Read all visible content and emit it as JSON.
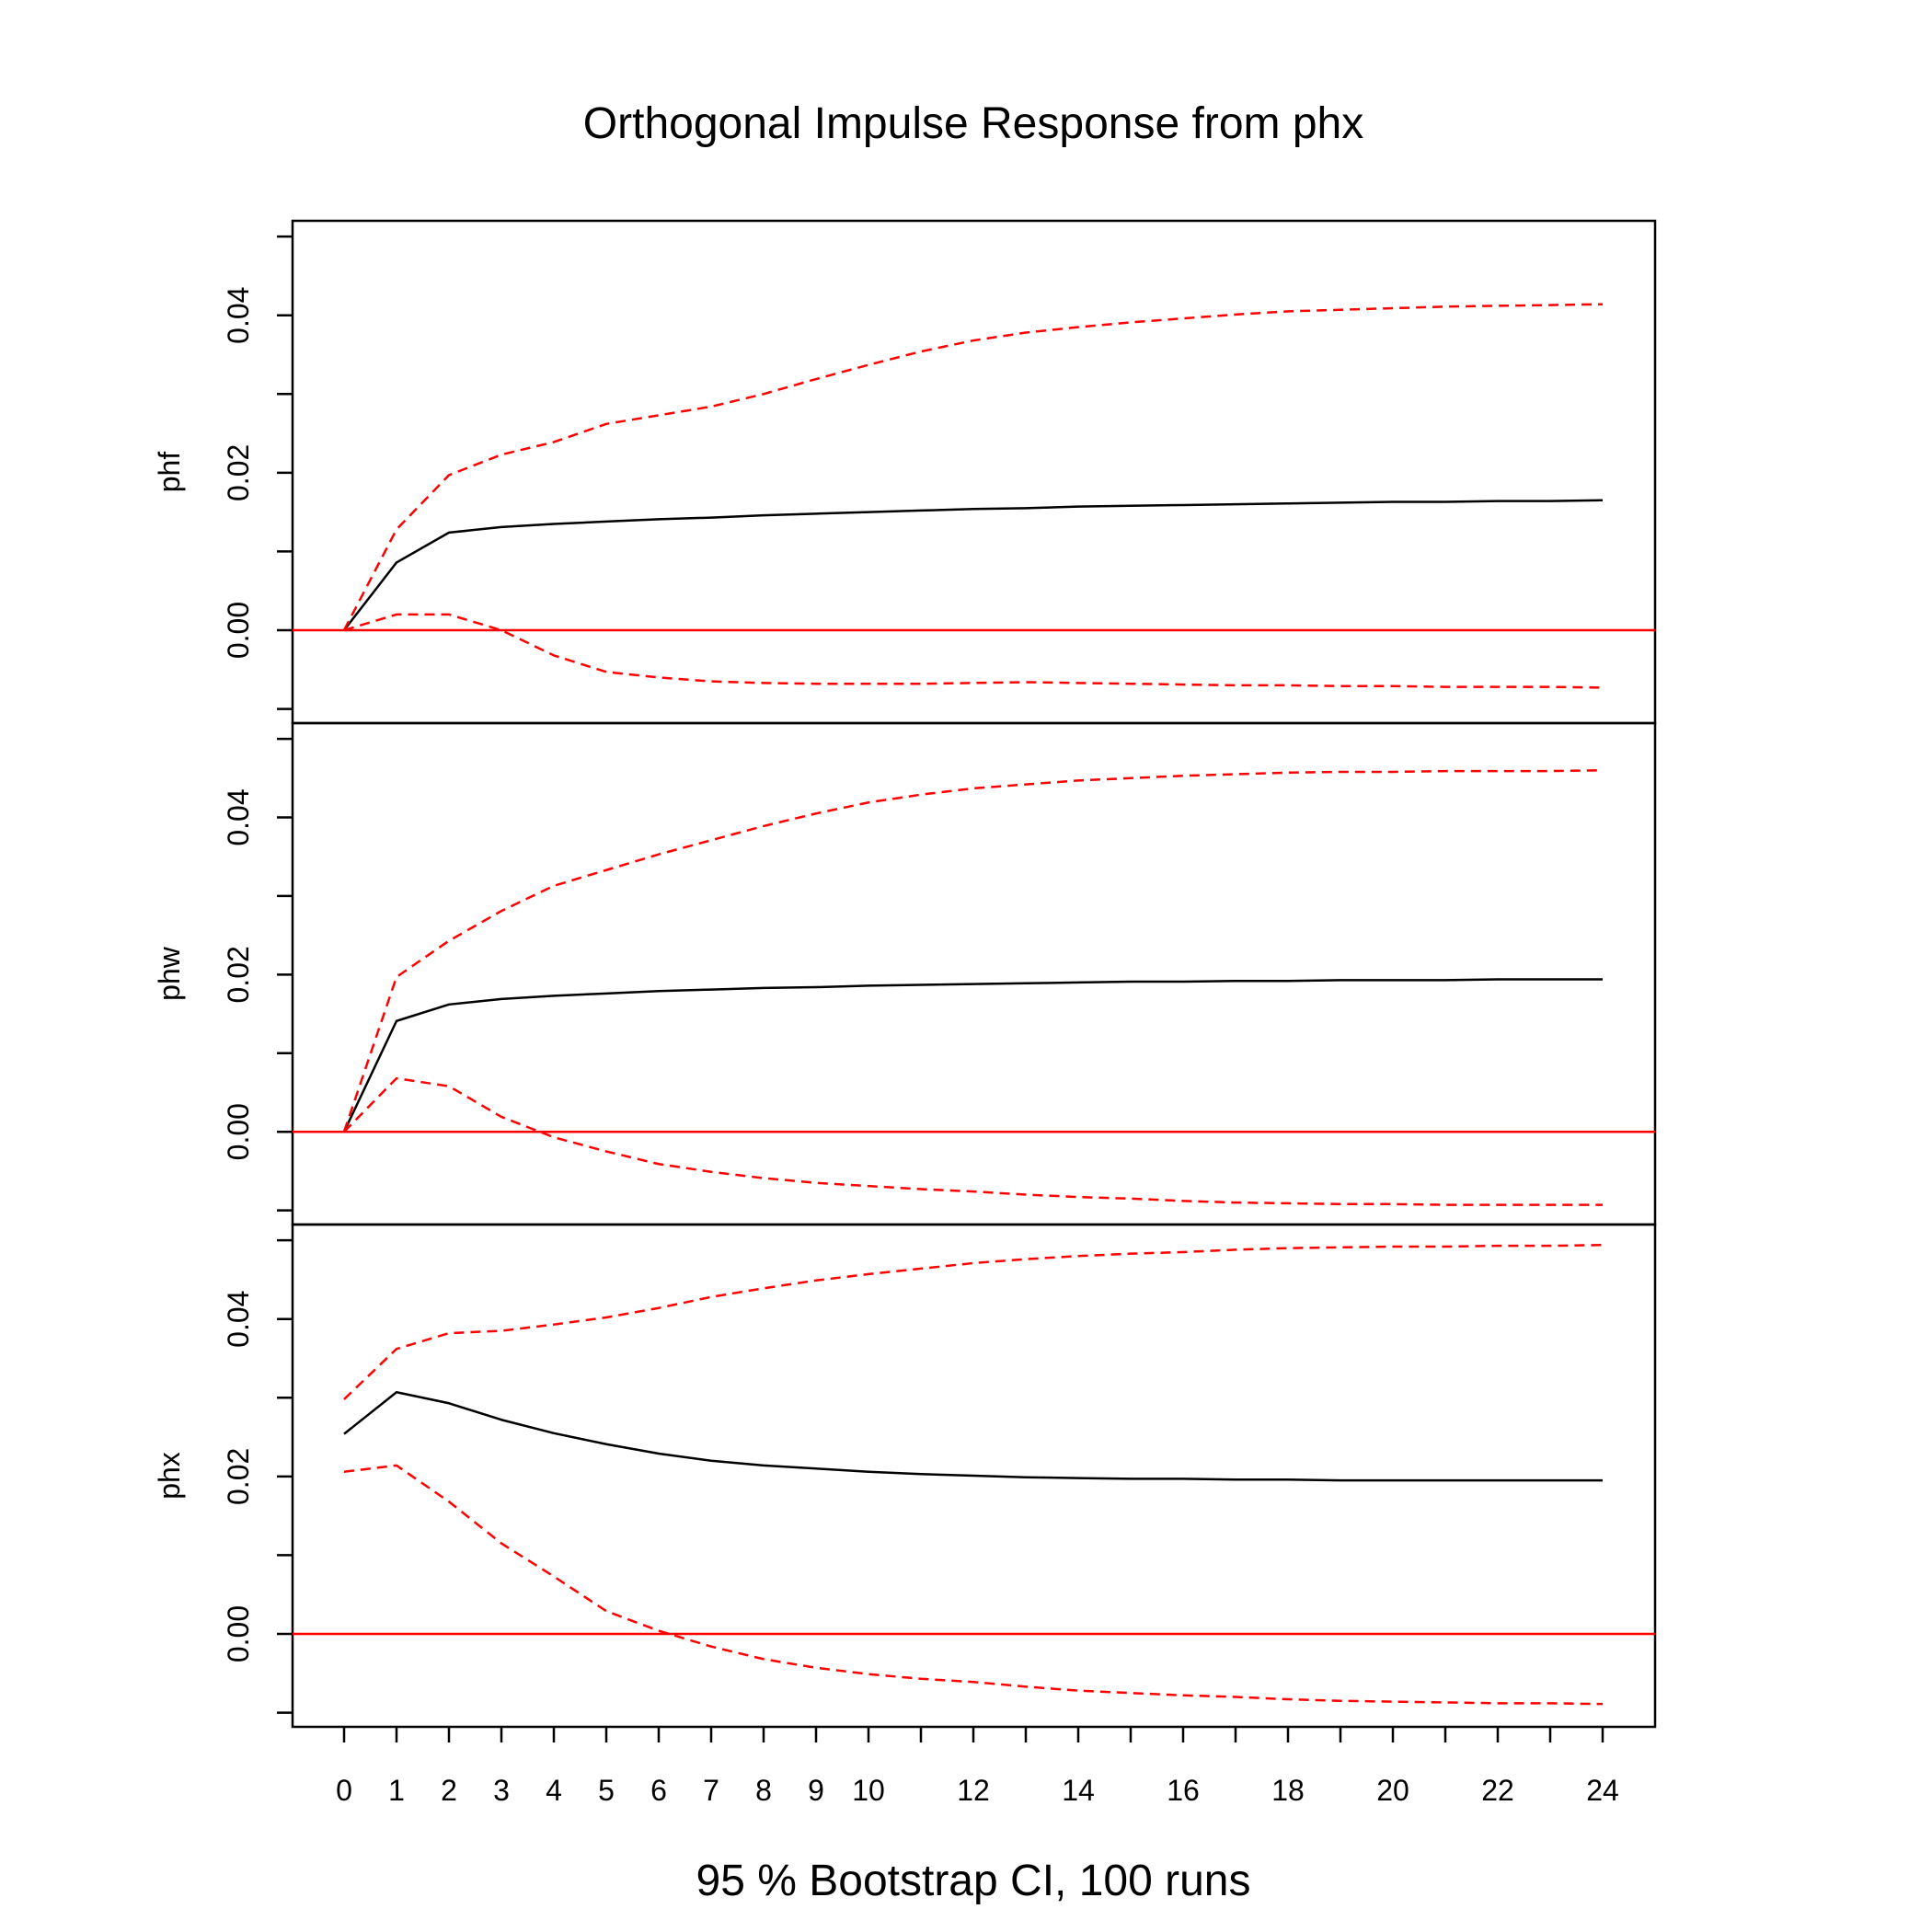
{
  "chart_data": {
    "type": "line",
    "title": "Orthogonal Impulse Response from phx",
    "xlabel": "95 % Bootstrap CI,  100 runs",
    "x": [
      0,
      1,
      2,
      3,
      4,
      5,
      6,
      7,
      8,
      9,
      10,
      11,
      12,
      13,
      14,
      15,
      16,
      17,
      18,
      19,
      20,
      21,
      22,
      23,
      24
    ],
    "x_tick_labels": [
      "0",
      "1",
      "2",
      "3",
      "4",
      "5",
      "6",
      "7",
      "8",
      "9",
      "10",
      "12",
      "14",
      "16",
      "18",
      "20",
      "22",
      "24"
    ],
    "x_tick_values": [
      0,
      1,
      2,
      3,
      4,
      5,
      6,
      7,
      8,
      9,
      10,
      12,
      14,
      16,
      18,
      20,
      22,
      24
    ],
    "ylim": [
      -0.0118,
      0.052
    ],
    "y_ticks": [
      -0.01,
      0.0,
      0.01,
      0.02,
      0.03,
      0.04,
      0.05
    ],
    "y_tick_labels": [
      "0.00",
      "0.02",
      "0.04"
    ],
    "y_tick_label_values": [
      0.0,
      0.02,
      0.04
    ],
    "colors": {
      "response": "#000000",
      "ci": "#ff0000",
      "zero_line": "#ff0000",
      "axes": "#000000"
    },
    "panels": [
      {
        "ylabel": "phf",
        "series": [
          {
            "role": "response",
            "style": "solid",
            "color": "#000000",
            "values": [
              0.0,
              0.0086,
              0.0124,
              0.0131,
              0.0135,
              0.0138,
              0.0141,
              0.0143,
              0.0146,
              0.0148,
              0.015,
              0.0152,
              0.0154,
              0.0155,
              0.0157,
              0.0158,
              0.0159,
              0.016,
              0.0161,
              0.0162,
              0.0163,
              0.0163,
              0.0164,
              0.0164,
              0.0165
            ]
          },
          {
            "role": "upper",
            "style": "dashed",
            "color": "#ff0000",
            "values": [
              0.0,
              0.0128,
              0.0197,
              0.0223,
              0.0239,
              0.0262,
              0.0273,
              0.0284,
              0.03,
              0.0319,
              0.0337,
              0.0354,
              0.0368,
              0.0378,
              0.0385,
              0.0391,
              0.0396,
              0.0401,
              0.0405,
              0.0407,
              0.0409,
              0.0411,
              0.0412,
              0.0413,
              0.0414
            ]
          },
          {
            "role": "lower",
            "style": "dashed",
            "color": "#ff0000",
            "values": [
              0.0,
              0.002,
              0.002,
              0.0,
              -0.0032,
              -0.0053,
              -0.006,
              -0.0065,
              -0.0067,
              -0.0068,
              -0.0068,
              -0.0068,
              -0.0067,
              -0.0066,
              -0.0067,
              -0.0068,
              -0.0069,
              -0.007,
              -0.007,
              -0.0071,
              -0.0071,
              -0.0072,
              -0.0072,
              -0.0072,
              -0.0073
            ]
          }
        ]
      },
      {
        "ylabel": "phw",
        "series": [
          {
            "role": "response",
            "style": "solid",
            "color": "#000000",
            "values": [
              0.0,
              0.0141,
              0.0162,
              0.0169,
              0.0173,
              0.0176,
              0.0179,
              0.0181,
              0.0183,
              0.0184,
              0.0186,
              0.0187,
              0.0188,
              0.0189,
              0.019,
              0.0191,
              0.0191,
              0.0192,
              0.0192,
              0.0193,
              0.0193,
              0.0193,
              0.0194,
              0.0194,
              0.0194
            ]
          },
          {
            "role": "upper",
            "style": "dashed",
            "color": "#ff0000",
            "values": [
              0.0,
              0.0197,
              0.0243,
              0.0281,
              0.0313,
              0.0333,
              0.0353,
              0.0371,
              0.0389,
              0.0405,
              0.0419,
              0.0429,
              0.0437,
              0.0442,
              0.0447,
              0.045,
              0.0453,
              0.0455,
              0.0457,
              0.0458,
              0.0458,
              0.0459,
              0.0459,
              0.0459,
              0.046
            ]
          },
          {
            "role": "lower",
            "style": "dashed",
            "color": "#ff0000",
            "values": [
              0.0,
              0.0068,
              0.0058,
              0.0019,
              -0.0007,
              -0.0025,
              -0.0041,
              -0.0051,
              -0.0059,
              -0.0065,
              -0.0069,
              -0.0073,
              -0.0076,
              -0.008,
              -0.0083,
              -0.0085,
              -0.0088,
              -0.009,
              -0.0091,
              -0.0092,
              -0.0092,
              -0.0093,
              -0.0093,
              -0.0093,
              -0.0093
            ]
          }
        ]
      },
      {
        "ylabel": "phx",
        "series": [
          {
            "role": "response",
            "style": "solid",
            "color": "#000000",
            "values": [
              0.0254,
              0.0307,
              0.0293,
              0.0272,
              0.0255,
              0.0241,
              0.0229,
              0.022,
              0.0214,
              0.021,
              0.0206,
              0.0203,
              0.0201,
              0.0199,
              0.0198,
              0.0197,
              0.0197,
              0.0196,
              0.0196,
              0.0195,
              0.0195,
              0.0195,
              0.0195,
              0.0195,
              0.0195
            ]
          },
          {
            "role": "upper",
            "style": "dashed",
            "color": "#ff0000",
            "values": [
              0.0298,
              0.0362,
              0.0382,
              0.0385,
              0.0393,
              0.0402,
              0.0414,
              0.0428,
              0.0439,
              0.0449,
              0.0457,
              0.0464,
              0.0471,
              0.0476,
              0.048,
              0.0483,
              0.0485,
              0.0488,
              0.049,
              0.0491,
              0.0492,
              0.0492,
              0.0493,
              0.0493,
              0.0494
            ]
          },
          {
            "role": "lower",
            "style": "dashed",
            "color": "#ff0000",
            "values": [
              0.0206,
              0.0214,
              0.0168,
              0.0115,
              0.0073,
              0.0029,
              0.0004,
              -0.0016,
              -0.0032,
              -0.0043,
              -0.0051,
              -0.0057,
              -0.0061,
              -0.0067,
              -0.0072,
              -0.0075,
              -0.0078,
              -0.008,
              -0.0083,
              -0.0085,
              -0.0086,
              -0.0087,
              -0.0088,
              -0.0088,
              -0.0089
            ]
          }
        ]
      }
    ]
  }
}
